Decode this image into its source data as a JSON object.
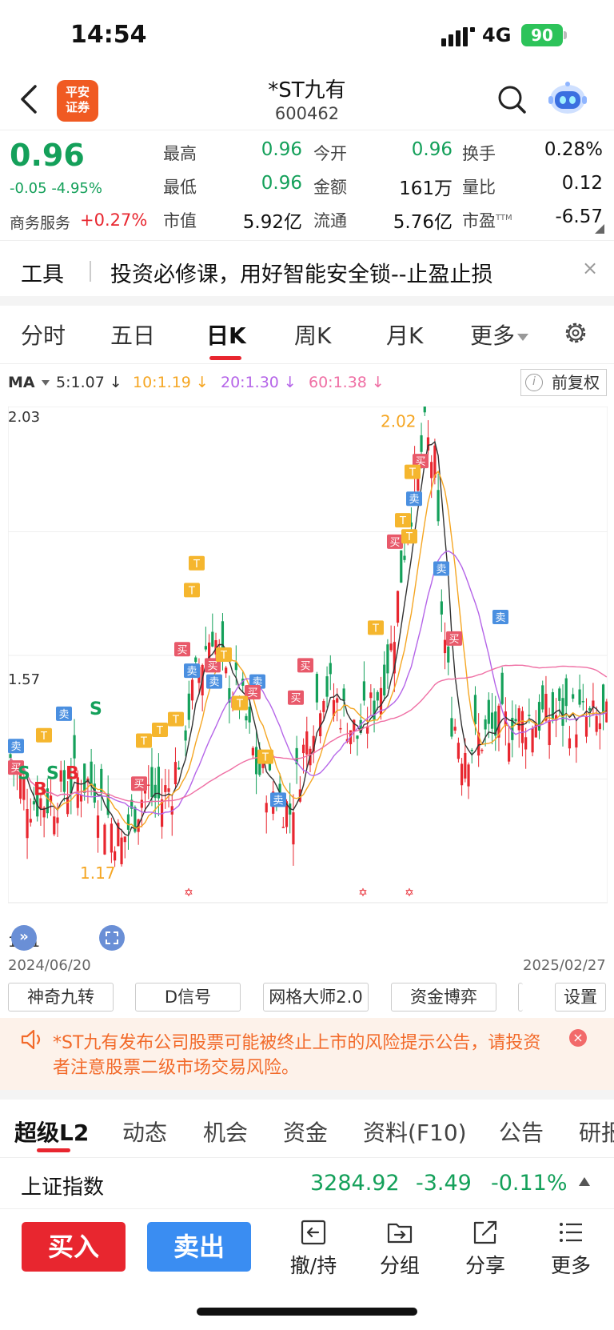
{
  "status_bar": {
    "time": "14:54",
    "network": "4G",
    "battery": "90"
  },
  "header": {
    "broker_logo_text": "平安证券",
    "stock_name": "*ST九有",
    "stock_code": "600462"
  },
  "quote": {
    "price": "0.96",
    "change": "-0.05",
    "change_pct": "-4.95%",
    "sector_name": "商务服务",
    "sector_change": "+0.27%",
    "fields": [
      {
        "label": "最高",
        "value": "0.96",
        "color": "green"
      },
      {
        "label": "今开",
        "value": "0.96",
        "color": "green"
      },
      {
        "label": "换手",
        "value": "0.28%",
        "color": "black"
      },
      {
        "label": "最低",
        "value": "0.96",
        "color": "green"
      },
      {
        "label": "金额",
        "value": "161万",
        "color": "black"
      },
      {
        "label": "量比",
        "value": "0.12",
        "color": "black"
      },
      {
        "label": "市值",
        "value": "5.92亿",
        "color": "black"
      },
      {
        "label": "流通",
        "value": "5.76亿",
        "color": "black"
      },
      {
        "label": "市盈",
        "value": "-6.57",
        "color": "black",
        "superscript": "TTM"
      }
    ]
  },
  "tools_banner": {
    "label": "工具",
    "text": "投资必修课，用好智能安全锁--止盈止损",
    "close": "×"
  },
  "period_tabs": [
    {
      "label": "分时"
    },
    {
      "label": "五日"
    },
    {
      "label": "日K",
      "active": true
    },
    {
      "label": "周K"
    },
    {
      "label": "月K"
    },
    {
      "label": "更多"
    }
  ],
  "ma": {
    "label": "MA",
    "items": [
      {
        "text": "5:1.07",
        "color": "#333333"
      },
      {
        "text": "10:1.19",
        "color": "#f5a623"
      },
      {
        "text": "20:1.30",
        "color": "#b565e8"
      },
      {
        "text": "60:1.38",
        "color": "#ef6fa4"
      }
    ],
    "fuquan": "前复权",
    "info_icon": "i"
  },
  "chart_data": {
    "type": "candlestick",
    "y_ticks": [
      "2.03",
      "1.57",
      "1.11"
    ],
    "x_start": "2024/06/20",
    "x_end": "2025/02/27",
    "max_label": "2.02",
    "min_label": "1.17",
    "ylim": [
      1.11,
      2.03
    ],
    "up_color": "#e8262f",
    "down_color": "#14a05a",
    "ma_colors": {
      "ma5": "#333333",
      "ma10": "#f5a623",
      "ma20": "#b565e8",
      "ma60": "#ef6fa4"
    },
    "signal_letters": [
      "S",
      "S",
      "B",
      "B",
      "S"
    ],
    "buy_tag": "买",
    "sell_tag": "卖",
    "t_tag": "T"
  },
  "indicator_buttons": [
    "神奇九转",
    "D信号",
    "网格大师2.0",
    "资金博弈",
    "设置"
  ],
  "notice": {
    "text": "*ST九有发布公司股票可能被终止上市的风险提示公告，请投资者注意股票二级市场交易风险。",
    "close": "×"
  },
  "info_tabs": [
    {
      "label": "超级L2",
      "active": true
    },
    {
      "label": "动态"
    },
    {
      "label": "机会"
    },
    {
      "label": "资金"
    },
    {
      "label": "资料(F10)"
    },
    {
      "label": "公告"
    },
    {
      "label": "研报"
    }
  ],
  "index": {
    "name": "上证指数",
    "value": "3284.92",
    "change": "-3.49",
    "change_pct": "-0.11%"
  },
  "bottom_bar": {
    "buy": "买入",
    "sell": "卖出",
    "items": [
      {
        "label": "撤/持",
        "icon": "undo-icon"
      },
      {
        "label": "分组",
        "icon": "folder-icon"
      },
      {
        "label": "分享",
        "icon": "share-icon"
      },
      {
        "label": "更多",
        "icon": "menu-icon"
      }
    ]
  }
}
